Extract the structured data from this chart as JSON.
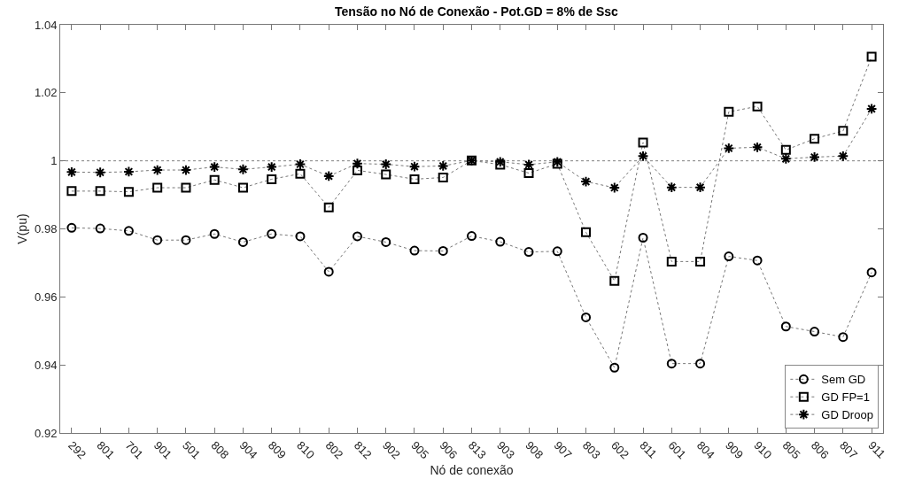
{
  "chart_data": {
    "type": "line",
    "title": "Tensão no Nó de Conexão - Pot.GD = 8% de Ssc",
    "xlabel": "Nó de conexão",
    "ylabel": "V(pu)",
    "categories": [
      "292",
      "801",
      "701",
      "901",
      "501",
      "808",
      "904",
      "809",
      "810",
      "802",
      "812",
      "902",
      "905",
      "906",
      "813",
      "903",
      "908",
      "907",
      "803",
      "602",
      "811",
      "601",
      "804",
      "909",
      "910",
      "805",
      "806",
      "807",
      "911"
    ],
    "series": [
      {
        "name": "Sem GD",
        "color": "#000000",
        "marker": "circle",
        "values": [
          0.9803,
          0.9801,
          0.9794,
          0.9767,
          0.9767,
          0.9785,
          0.9761,
          0.9785,
          0.9778,
          0.9674,
          0.9778,
          0.9761,
          0.9736,
          0.9735,
          0.9779,
          0.9762,
          0.9732,
          0.9734,
          0.954,
          0.9392,
          0.9774,
          0.9404,
          0.9404,
          0.9719,
          0.9707,
          0.9513,
          0.9498,
          0.9482,
          0.9672
        ]
      },
      {
        "name": "GD FP=1",
        "color": "#000000",
        "marker": "square",
        "values": [
          0.9911,
          0.9911,
          0.9909,
          0.9921,
          0.9921,
          0.9944,
          0.9921,
          0.9946,
          0.9962,
          0.9863,
          0.9972,
          0.996,
          0.9946,
          0.9951,
          1.0001,
          0.9989,
          0.9964,
          0.9991,
          0.979,
          0.9647,
          1.0054,
          0.9704,
          0.9704,
          1.0144,
          1.016,
          1.0032,
          1.0065,
          1.0088,
          1.0306
        ]
      },
      {
        "name": "GD Droop",
        "color": "#000000",
        "marker": "cross",
        "values": [
          0.9967,
          0.9966,
          0.9968,
          0.9973,
          0.9973,
          0.9982,
          0.9975,
          0.9982,
          0.999,
          0.9955,
          0.9992,
          0.999,
          0.9983,
          0.9985,
          1.0001,
          0.9997,
          0.9989,
          0.9997,
          0.9939,
          0.9921,
          1.0014,
          0.9922,
          0.9922,
          1.0037,
          1.004,
          1.0006,
          1.0011,
          1.0014,
          1.0153
        ]
      }
    ],
    "line_style": "dotted",
    "ylim": [
      0.92,
      1.04
    ],
    "yticks": [
      0.92,
      0.94,
      0.96,
      0.98,
      1,
      1.02,
      1.04
    ],
    "grid": false,
    "legend": "bottom right",
    "ref_lines": [
      {
        "axis": "y",
        "value": 1,
        "color": "#808080",
        "line_style": "dotted"
      }
    ]
  }
}
